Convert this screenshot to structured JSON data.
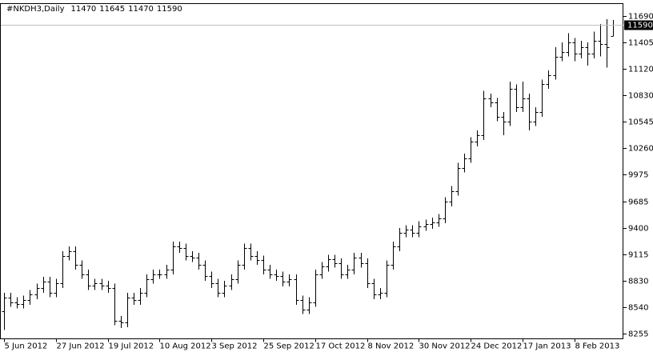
{
  "chart_data": {
    "type": "ohlc",
    "title": "#NKDH3,Daily",
    "categories": [
      "5 Jun 2012",
      null,
      null,
      null,
      null,
      null,
      null,
      null,
      "27 Jun 2012",
      null,
      null,
      null,
      null,
      null,
      null,
      null,
      "19 Jul 2012",
      null,
      null,
      null,
      null,
      null,
      null,
      null,
      "10 Aug 2012",
      null,
      null,
      null,
      null,
      null,
      null,
      null,
      "3 Sep 2012",
      null,
      null,
      null,
      null,
      null,
      null,
      null,
      "25 Sep 2012",
      null,
      null,
      null,
      null,
      null,
      null,
      null,
      "17 Oct 2012",
      null,
      null,
      null,
      null,
      null,
      null,
      null,
      "8 Nov 2012",
      null,
      null,
      null,
      null,
      null,
      null,
      null,
      "30 Nov 2012",
      null,
      null,
      null,
      null,
      null,
      null,
      null,
      "24 Dec 2012",
      null,
      null,
      null,
      null,
      null,
      null,
      null,
      "17 Jan 2013",
      null,
      null,
      null,
      null,
      null,
      null,
      null,
      "8 Feb 2013",
      null,
      null,
      null,
      null,
      null,
      null
    ],
    "open": [
      8500,
      8650,
      8600,
      8580,
      8620,
      8680,
      8750,
      8820,
      8700,
      8800,
      9100,
      9150,
      9000,
      8900,
      8780,
      8800,
      8780,
      8750,
      8400,
      8380,
      8650,
      8620,
      8700,
      8850,
      8900,
      8900,
      8950,
      9200,
      9180,
      9100,
      9080,
      9000,
      8880,
      8800,
      8700,
      8780,
      8850,
      9000,
      9180,
      9100,
      9050,
      8950,
      8900,
      8880,
      8820,
      8850,
      8620,
      8520,
      8600,
      8900,
      8980,
      9060,
      9020,
      8900,
      8950,
      9080,
      9020,
      8800,
      8680,
      8700,
      9000,
      9200,
      9350,
      9380,
      9350,
      9420,
      9440,
      9460,
      9500,
      9680,
      9800,
      10050,
      10150,
      10330,
      10400,
      10800,
      10750,
      10600,
      10550,
      10900,
      10700,
      10800,
      10550,
      10650,
      10950,
      11050,
      11250,
      11300,
      11400,
      11280,
      11350,
      11280,
      11420,
      11380,
      11470
    ],
    "high": [
      8700,
      8700,
      8650,
      8670,
      8730,
      8800,
      8870,
      8870,
      8850,
      9150,
      9200,
      9200,
      9050,
      8950,
      8850,
      8850,
      8830,
      8800,
      8450,
      8700,
      8700,
      8750,
      8900,
      8950,
      8950,
      9000,
      9250,
      9250,
      9230,
      9150,
      9130,
      9050,
      8930,
      8850,
      8830,
      8900,
      9050,
      9230,
      9230,
      9150,
      9100,
      9000,
      8950,
      8930,
      8900,
      8900,
      8670,
      8650,
      8950,
      9030,
      9110,
      9110,
      9070,
      9000,
      9130,
      9130,
      9070,
      8850,
      8750,
      9050,
      9250,
      9400,
      9430,
      9430,
      9470,
      9490,
      9510,
      9550,
      9730,
      9850,
      10100,
      10200,
      10380,
      10450,
      10880,
      10850,
      10800,
      10650,
      10980,
      10950,
      10980,
      10850,
      10700,
      11000,
      11100,
      11350,
      11400,
      11500,
      11450,
      11420,
      11400,
      11520,
      11600,
      11650,
      11645
    ],
    "low": [
      8300,
      8550,
      8530,
      8530,
      8570,
      8630,
      8700,
      8650,
      8650,
      8750,
      9050,
      8950,
      8850,
      8730,
      8730,
      8730,
      8700,
      8350,
      8320,
      8330,
      8570,
      8570,
      8650,
      8800,
      8850,
      8850,
      8900,
      9130,
      9050,
      9030,
      8950,
      8830,
      8750,
      8650,
      8650,
      8730,
      8800,
      8950,
      9050,
      9000,
      8900,
      8850,
      8830,
      8770,
      8770,
      8570,
      8470,
      8470,
      8550,
      8850,
      8930,
      8970,
      8850,
      8850,
      8900,
      8970,
      8750,
      8630,
      8630,
      8650,
      8950,
      9150,
      9300,
      9300,
      9300,
      9370,
      9390,
      9410,
      9450,
      9630,
      9750,
      10000,
      10100,
      10280,
      10350,
      10700,
      10550,
      10400,
      10500,
      10650,
      10650,
      10450,
      10500,
      10600,
      10900,
      11000,
      11200,
      11250,
      11200,
      11230,
      11150,
      11230,
      11250,
      11130,
      11470
    ],
    "close": [
      8650,
      8600,
      8580,
      8620,
      8680,
      8750,
      8820,
      8700,
      8800,
      9100,
      9150,
      9000,
      8900,
      8780,
      8800,
      8780,
      8750,
      8400,
      8380,
      8650,
      8620,
      8700,
      8850,
      8900,
      8900,
      8950,
      9200,
      9180,
      9100,
      9080,
      9000,
      8880,
      8800,
      8700,
      8780,
      8850,
      9000,
      9180,
      9100,
      9050,
      8950,
      8900,
      8880,
      8820,
      8850,
      8620,
      8520,
      8600,
      8900,
      8980,
      9060,
      9020,
      8900,
      8950,
      9080,
      9020,
      8800,
      8680,
      8700,
      9000,
      9200,
      9350,
      9380,
      9350,
      9420,
      9440,
      9460,
      9500,
      9680,
      9800,
      10050,
      10150,
      10330,
      10400,
      10800,
      10750,
      10600,
      10550,
      10900,
      10700,
      10800,
      10550,
      10650,
      10950,
      11050,
      11250,
      11300,
      11400,
      11280,
      11350,
      11280,
      11420,
      11380,
      11350,
      11590
    ],
    "ylim": [
      8203,
      11820
    ],
    "yticks": [
      8255,
      8540,
      8830,
      9115,
      9400,
      9685,
      9975,
      10260,
      10545,
      10830,
      11120,
      11405,
      11690
    ],
    "color": "#000000",
    "current_line_color": "#c0c0c0"
  }
}
